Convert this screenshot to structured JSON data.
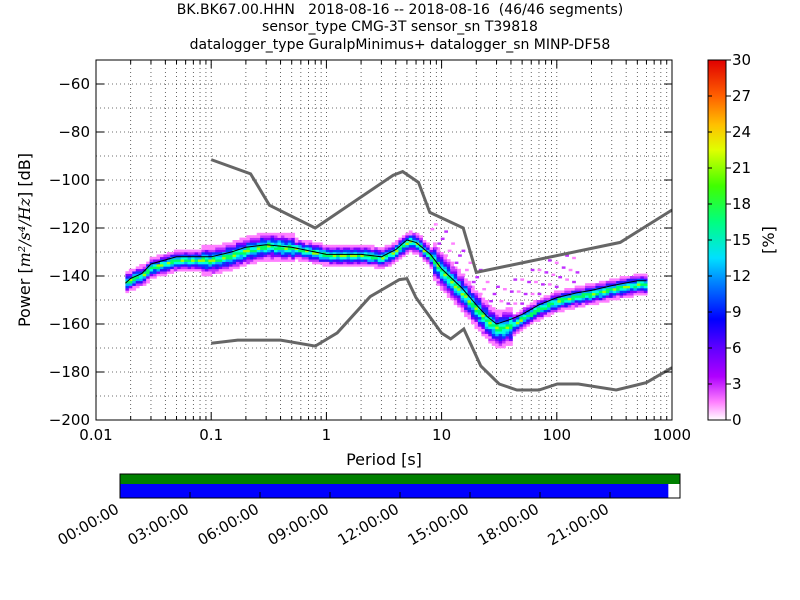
{
  "title_lines": [
    "BK.BK67.00.HHN   2018-08-16 -- 2018-08-16  (46/46 segments)",
    "sensor_type CMG-3T sensor_sn T39818",
    "datalogger_type GuralpMinimus+ datalogger_sn MINP-DF58"
  ],
  "chart_data": {
    "type": "heatmap",
    "xlabel": "Period [s]",
    "ylabel_prefix": "Power [",
    "ylabel_unit": "m²/s⁴/Hz",
    "ylabel_suffix": "] [dB]",
    "x_scale": "log",
    "xlim": [
      0.01,
      1000
    ],
    "ylim": [
      -200,
      -50
    ],
    "x_ticks": [
      0.01,
      0.1,
      1,
      10,
      100,
      1000
    ],
    "x_tick_labels": [
      "0.01",
      "0.1",
      "1",
      "10",
      "100",
      "1000"
    ],
    "y_ticks": [
      -200,
      -180,
      -160,
      -140,
      -120,
      -100,
      -80,
      -60
    ],
    "y_tick_labels": [
      "−200",
      "−180",
      "−160",
      "−140",
      "−120",
      "−100",
      "−80",
      "−60"
    ],
    "grid": true,
    "colorbar": {
      "label": "[%]",
      "range": [
        0,
        30
      ],
      "ticks": [
        "0",
        "3",
        "6",
        "9",
        "12",
        "15",
        "18",
        "21",
        "24",
        "27",
        "30"
      ]
    },
    "noise_model_high": {
      "x": [
        0.1,
        0.22,
        0.32,
        0.8,
        3.8,
        4.6,
        6.3,
        7.9,
        15.4,
        20,
        354.8,
        1000
      ],
      "y": [
        -91.5,
        -97.4,
        -110.5,
        -120,
        -98,
        -96.5,
        -101,
        -113.5,
        -120,
        -138.5,
        -126,
        -112.5
      ]
    },
    "noise_model_low": {
      "x": [
        0.1,
        0.17,
        0.4,
        0.8,
        1.24,
        2.4,
        4.3,
        5.0,
        6.0,
        10.0,
        12.0,
        15.6,
        21.9,
        31.6,
        45.0,
        70.0,
        101.0,
        154.0,
        328.0,
        600.0,
        1000
      ],
      "y": [
        -168,
        -166.7,
        -166.7,
        -169.2,
        -163.7,
        -148.6,
        -141.5,
        -141.1,
        -149.0,
        -163.8,
        -166.2,
        -162.1,
        -177.5,
        -185.0,
        -187.5,
        -187.5,
        -185.0,
        -185.0,
        -187.5,
        -184.4,
        -178.2
      ]
    },
    "mode_curve": {
      "x": [
        0.018,
        0.02,
        0.025,
        0.03,
        0.05,
        0.1,
        0.15,
        0.2,
        0.3,
        0.5,
        0.8,
        1,
        2,
        3,
        4,
        5,
        6,
        8,
        10,
        15,
        20,
        25,
        30,
        40,
        50,
        70,
        100,
        150,
        200,
        300,
        500,
        600
      ],
      "y": [
        -143,
        -142,
        -140,
        -137,
        -134,
        -134,
        -132,
        -130,
        -128,
        -129,
        -131,
        -132,
        -132,
        -133,
        -130,
        -126,
        -127,
        -133,
        -139,
        -148,
        -155,
        -160,
        -163,
        -161,
        -158,
        -154,
        -151,
        -149,
        -148,
        -146,
        -144,
        -144
      ]
    },
    "mean_curve": {
      "x": [
        0.018,
        0.02,
        0.025,
        0.03,
        0.05,
        0.1,
        0.15,
        0.2,
        0.3,
        0.5,
        0.8,
        1,
        2,
        3,
        4,
        5,
        6,
        8,
        10,
        15,
        20,
        25,
        30,
        40,
        50,
        70,
        100,
        150,
        200,
        300,
        500,
        600
      ],
      "y": [
        -143,
        -141,
        -139,
        -135,
        -132,
        -132,
        -130,
        -128,
        -127,
        -128,
        -130,
        -131,
        -131,
        -132,
        -129,
        -125,
        -126,
        -131,
        -137,
        -145,
        -152,
        -157,
        -160,
        -158,
        -156,
        -152,
        -149,
        -147,
        -146,
        -144,
        -142,
        -142
      ]
    },
    "timeline": {
      "tick_labels": [
        "00:00:00",
        "03:00:00",
        "06:00:00",
        "09:00:00",
        "12:00:00",
        "15:00:00",
        "18:00:00",
        "21:00:00"
      ],
      "tick_hours": [
        0,
        3,
        6,
        9,
        12,
        15,
        18,
        21
      ],
      "range_hours": [
        0,
        24
      ],
      "data_coverage_hours": [
        0,
        24
      ],
      "psd_coverage_hours": [
        0,
        23.5
      ],
      "data_color": "#008000",
      "psd_color": "#0000ff"
    }
  }
}
